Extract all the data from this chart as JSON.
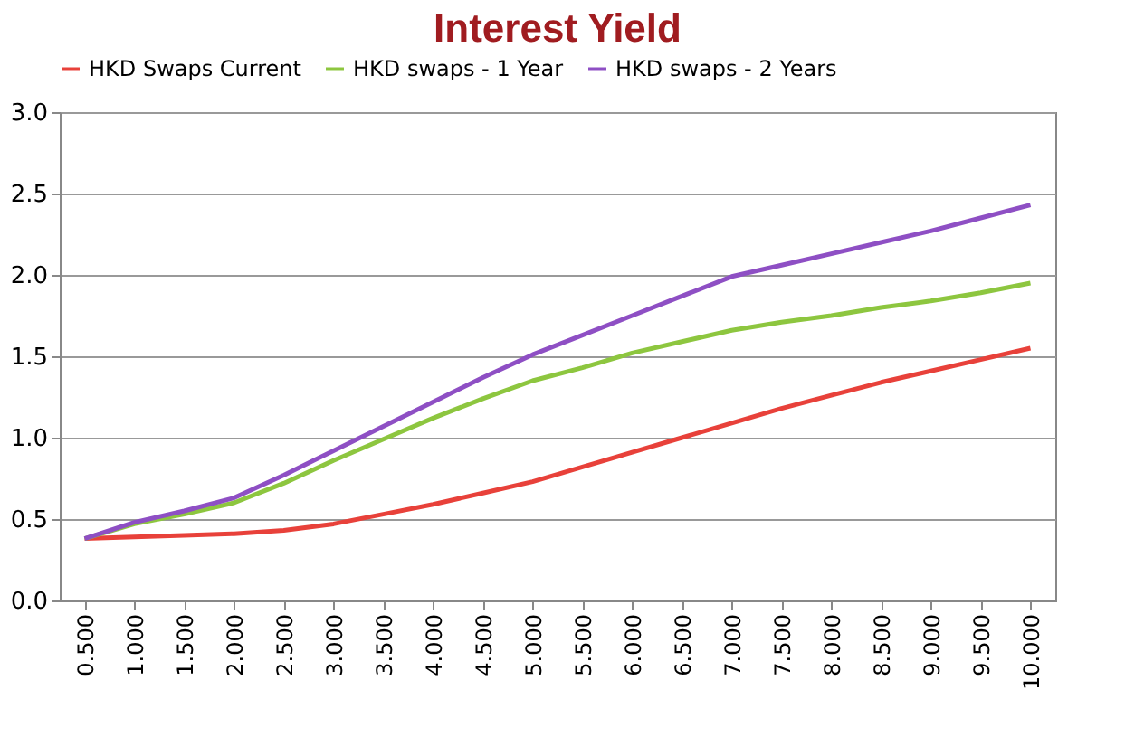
{
  "chart_data": {
    "type": "line",
    "title": "Interest Yield",
    "categories": [
      "0.500",
      "1.000",
      "1.500",
      "2.000",
      "2.500",
      "3.000",
      "3.500",
      "4.000",
      "4.500",
      "5.000",
      "5.500",
      "6.000",
      "6.500",
      "7.000",
      "7.500",
      "8.000",
      "8.500",
      "9.000",
      "9.500",
      "10.000"
    ],
    "series": [
      {
        "name": "HKD Swaps Current",
        "color": "#e8413a",
        "values": [
          0.38,
          0.39,
          0.4,
          0.41,
          0.43,
          0.47,
          0.53,
          0.59,
          0.66,
          0.73,
          0.82,
          0.91,
          1.0,
          1.09,
          1.18,
          1.26,
          1.34,
          1.41,
          1.48,
          1.55
        ]
      },
      {
        "name": "HKD swaps - 1 Year",
        "color": "#8dc63f",
        "values": [
          0.38,
          0.47,
          0.53,
          0.6,
          0.72,
          0.86,
          0.99,
          1.12,
          1.24,
          1.35,
          1.43,
          1.52,
          1.59,
          1.66,
          1.71,
          1.75,
          1.8,
          1.84,
          1.89,
          1.95
        ]
      },
      {
        "name": "HKD swaps - 2 Years",
        "color": "#8e4fc4",
        "values": [
          0.38,
          0.48,
          0.55,
          0.63,
          0.77,
          0.92,
          1.07,
          1.22,
          1.37,
          1.51,
          1.63,
          1.75,
          1.87,
          1.99,
          2.06,
          2.13,
          2.2,
          2.27,
          2.35,
          2.43
        ]
      }
    ],
    "ylim": [
      0,
      3
    ],
    "yticks": [
      {
        "value": 0,
        "label": "0.0"
      },
      {
        "value": 0.5,
        "label": "0.5"
      },
      {
        "value": 1,
        "label": "1.0"
      },
      {
        "value": 1.5,
        "label": "1.5"
      },
      {
        "value": 2,
        "label": "2.0"
      },
      {
        "value": 2.5,
        "label": "2.5"
      },
      {
        "value": 3,
        "label": "3.0"
      }
    ],
    "grid": "y",
    "legend": "top",
    "marker": "none",
    "line_style": "solid"
  }
}
